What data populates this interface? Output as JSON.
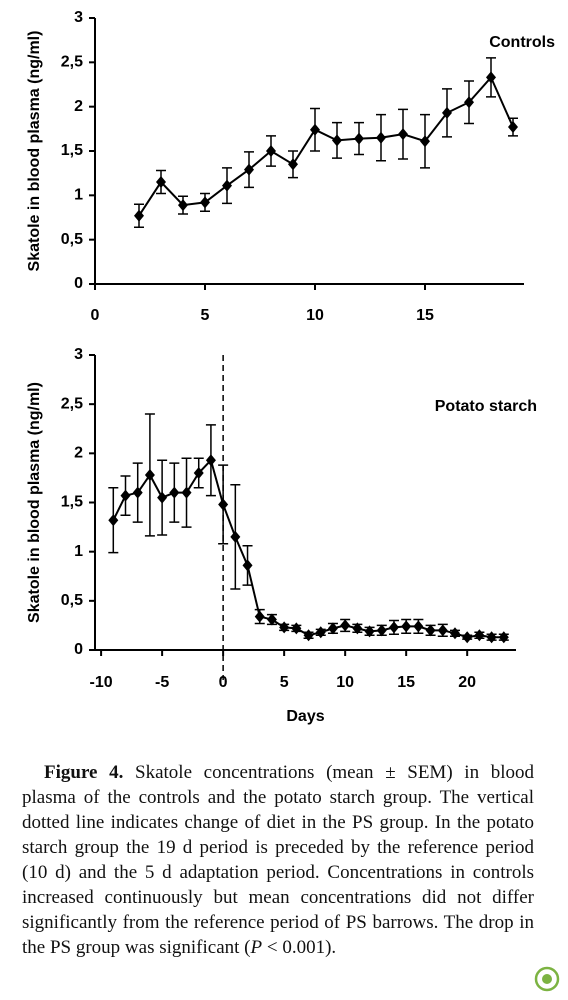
{
  "chart_data": [
    {
      "type": "line",
      "y_label": "Skatole in blood plasma (ng/ml)",
      "xlim": [
        0,
        19.5
      ],
      "xticks": [
        0,
        5,
        10,
        15
      ],
      "ylim": [
        0,
        3
      ],
      "yticks": [
        0,
        {
          "value": 0.5,
          "label": "0,5"
        },
        1,
        {
          "value": 1.5,
          "label": "1,5"
        },
        2,
        {
          "value": 2.5,
          "label": "2,5"
        },
        3
      ],
      "series": [
        {
          "name": "Controls",
          "color": "#000000",
          "x": [
            2,
            3,
            4,
            5,
            6,
            7,
            8,
            9,
            10,
            11,
            12,
            13,
            14,
            15,
            16,
            17,
            18,
            19
          ],
          "values": [
            0.77,
            1.15,
            0.89,
            0.92,
            1.11,
            1.29,
            1.5,
            1.35,
            1.74,
            1.62,
            1.64,
            1.65,
            1.69,
            1.61,
            1.93,
            2.05,
            2.33,
            1.77
          ],
          "errors": [
            0.13,
            0.13,
            0.1,
            0.1,
            0.2,
            0.2,
            0.17,
            0.15,
            0.24,
            0.2,
            0.18,
            0.26,
            0.28,
            0.3,
            0.27,
            0.24,
            0.22,
            0.1
          ]
        }
      ]
    },
    {
      "type": "line",
      "y_label": "Skatole in blood plasma (ng/ml)",
      "x_label": "Days",
      "xlim": [
        -10.5,
        24
      ],
      "xticks": [
        -10,
        -5,
        0,
        5,
        10,
        15,
        20
      ],
      "ylim": [
        0,
        3
      ],
      "yticks": [
        0,
        {
          "value": 0.5,
          "label": "0,5"
        },
        1,
        {
          "value": 1.5,
          "label": "1,5"
        },
        2,
        {
          "value": 2.5,
          "label": "2,5"
        },
        3
      ],
      "vline": 0,
      "series": [
        {
          "name": "Potato starch",
          "color": "#000000",
          "x": [
            -9,
            -8,
            -7,
            -6,
            -5,
            -4,
            -3,
            -2,
            -1,
            0,
            1,
            2,
            3,
            4,
            5,
            6,
            7,
            8,
            9,
            10,
            11,
            12,
            13,
            14,
            15,
            16,
            17,
            18,
            19,
            20,
            21,
            22,
            23
          ],
          "values": [
            1.32,
            1.57,
            1.6,
            1.78,
            1.55,
            1.6,
            1.6,
            1.8,
            1.93,
            1.48,
            1.15,
            0.86,
            0.34,
            0.31,
            0.23,
            0.22,
            0.15,
            0.18,
            0.22,
            0.25,
            0.22,
            0.19,
            0.2,
            0.23,
            0.24,
            0.24,
            0.2,
            0.2,
            0.17,
            0.13,
            0.15,
            0.13,
            0.13
          ],
          "errors": [
            0.33,
            0.2,
            0.3,
            0.62,
            0.38,
            0.3,
            0.35,
            0.15,
            0.36,
            0.4,
            0.53,
            0.2,
            0.07,
            0.05,
            0.03,
            0.03,
            0.03,
            0.03,
            0.05,
            0.06,
            0.04,
            0.04,
            0.05,
            0.07,
            0.07,
            0.07,
            0.05,
            0.06,
            0.03,
            0.02,
            0.03,
            0.03,
            0.03
          ]
        }
      ]
    }
  ],
  "caption": {
    "label": "Figure 4.",
    "parts": [
      "Skatole concentrations (mean ± SEM) in blood plasma of the controls and the potato starch group. The vertical dotted line indicates change of diet in the PS group. In the potato starch group the 19 d period is preceded by the reference period (10 d) and the 5 d adaptation period. Concentrations in controls increased continuously but mean concentrations did not differ significantly from the reference period of PS barrows. The drop in the PS group was significant (",
      "P",
      " < 0.001)."
    ]
  }
}
